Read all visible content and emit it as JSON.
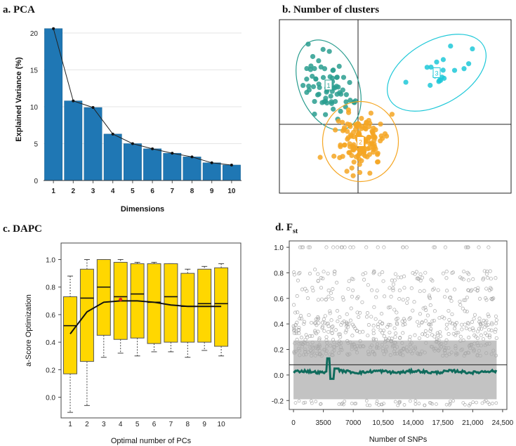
{
  "panels": {
    "a": {
      "title": "a. PCA"
    },
    "b": {
      "title": "b. Number of clusters"
    },
    "c": {
      "title": "c. DAPC"
    },
    "d": {
      "title": "d. F",
      "title_sub": "st"
    }
  },
  "chart_data": [
    {
      "type": "bar",
      "title": "a. PCA",
      "xlabel": "Dimensions",
      "ylabel": "Explained Variance (%)",
      "categories": [
        "1",
        "2",
        "3",
        "4",
        "5",
        "6",
        "7",
        "8",
        "9",
        "10"
      ],
      "values": [
        20.6,
        10.8,
        9.9,
        6.3,
        5.0,
        4.3,
        3.7,
        3.2,
        2.4,
        2.1
      ],
      "ylim": [
        0,
        22
      ],
      "yticks": [
        0,
        5,
        10,
        15,
        20
      ],
      "bar_color": "#1f77b4",
      "overlay": "line with points through bar tops"
    },
    {
      "type": "scatter",
      "title": "b. Number of clusters",
      "series": [
        {
          "name": "1",
          "color": "#2a9d8f",
          "center": [
            -0.6,
            0.8
          ],
          "n": 70
        },
        {
          "name": "2",
          "color": "#f5a623",
          "center": [
            0.05,
            -0.35
          ],
          "n": 140
        },
        {
          "name": "3",
          "color": "#1ec8d8",
          "center": [
            1.6,
            1.05
          ],
          "n": 20
        }
      ],
      "axes": "cross at origin",
      "ellipses": true
    },
    {
      "type": "box",
      "title": "c. DAPC",
      "xlabel": "Optimal number of PCs",
      "ylabel": "a-Score Optimization",
      "categories": [
        "1",
        "2",
        "3",
        "4",
        "5",
        "6",
        "7",
        "8",
        "9",
        "10"
      ],
      "ylim": [
        -0.15,
        1.12
      ],
      "yticks": [
        0.0,
        0.2,
        0.4,
        0.6,
        0.8,
        1.0
      ],
      "box_color": "#ffd700",
      "boxes": [
        {
          "min": -0.11,
          "q1": 0.17,
          "median": 0.52,
          "q3": 0.73,
          "max": 0.88
        },
        {
          "min": -0.06,
          "q1": 0.26,
          "median": 0.72,
          "q3": 0.93,
          "max": 1.0
        },
        {
          "min": 0.29,
          "q1": 0.45,
          "median": 0.8,
          "q3": 1.0,
          "max": 1.0
        },
        {
          "min": 0.32,
          "q1": 0.42,
          "median": 0.73,
          "q3": 0.98,
          "max": 1.0
        },
        {
          "min": 0.3,
          "q1": 0.43,
          "median": 0.75,
          "q3": 0.97,
          "max": 0.98
        },
        {
          "min": 0.33,
          "q1": 0.39,
          "median": 0.69,
          "q3": 0.97,
          "max": 0.98
        },
        {
          "min": 0.33,
          "q1": 0.4,
          "median": 0.73,
          "q3": 0.97,
          "max": 0.97
        },
        {
          "min": 0.29,
          "q1": 0.4,
          "median": 0.66,
          "q3": 0.9,
          "max": 0.93
        },
        {
          "min": 0.34,
          "q1": 0.4,
          "median": 0.68,
          "q3": 0.93,
          "max": 0.95
        },
        {
          "min": 0.3,
          "q1": 0.37,
          "median": 0.68,
          "q3": 0.94,
          "max": 0.97
        }
      ],
      "mean_line": [
        0.46,
        0.62,
        0.69,
        0.7,
        0.7,
        0.69,
        0.67,
        0.66,
        0.66,
        0.66
      ],
      "optimum_marker": {
        "x": 4,
        "y": 0.71,
        "color": "#e02020"
      }
    },
    {
      "type": "scatter",
      "title": "d. Fst",
      "xlabel": "Number of SNPs",
      "ylabel": "",
      "xticks": [
        "0",
        "3500",
        "7000",
        "10,500",
        "14,000",
        "17,500",
        "21,000",
        "24,500"
      ],
      "xtick_values": [
        0,
        3500,
        7000,
        10500,
        14000,
        17500,
        21000,
        24500
      ],
      "yticks": [
        "1.0",
        "0.8",
        "0.6",
        "0.4",
        "0.2",
        "0.0",
        "-0.2"
      ],
      "ytick_values": [
        1.0,
        0.8,
        0.6,
        0.4,
        0.2,
        0.0,
        -0.2
      ],
      "xlim": [
        -500,
        25000
      ],
      "ylim": [
        -0.27,
        1.05
      ],
      "point_color": "#bdbdbd",
      "smooth_color": "#0f6b5c",
      "hline": 0.08
    }
  ]
}
